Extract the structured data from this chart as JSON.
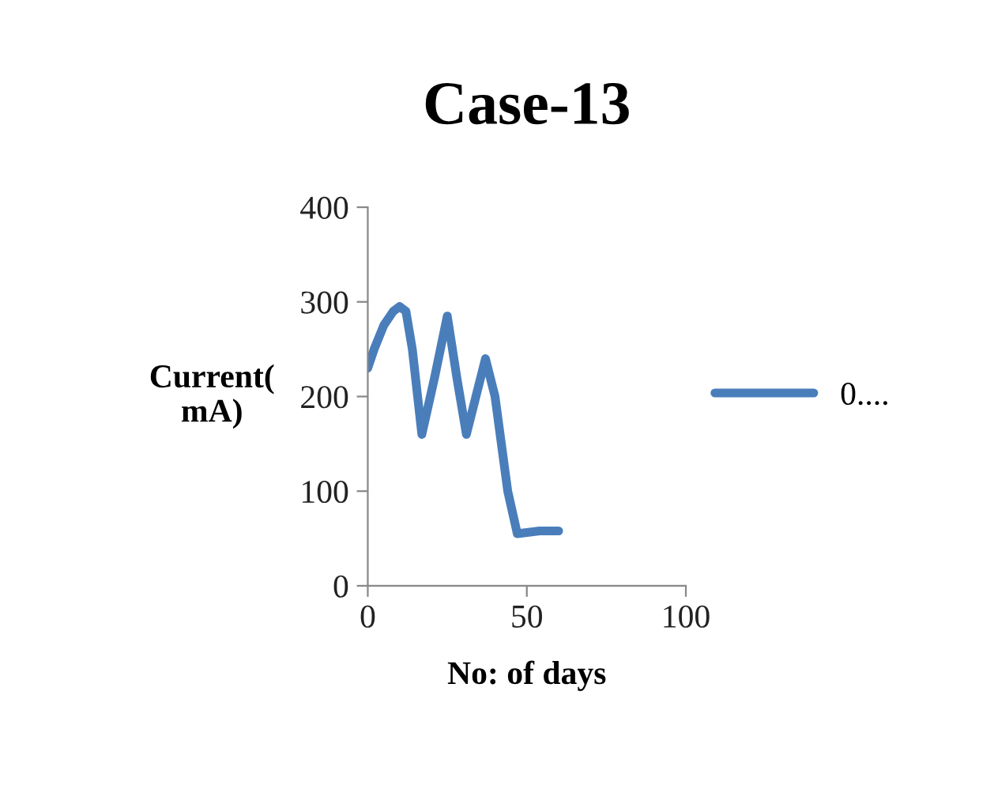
{
  "chart_data": {
    "type": "line",
    "title": "Case-13",
    "xlabel": "No: of days",
    "ylabel": "Current(\nmA)",
    "series": [
      {
        "name": "0....",
        "color": "#4a7ebb",
        "x": [
          0,
          2,
          5,
          8,
          10,
          12,
          14,
          17,
          21,
          25,
          28,
          31,
          34,
          37,
          40,
          44,
          47,
          54,
          60
        ],
        "values": [
          230,
          250,
          275,
          290,
          295,
          290,
          250,
          160,
          220,
          285,
          220,
          160,
          200,
          240,
          200,
          100,
          55,
          58,
          58
        ]
      }
    ],
    "xlim": [
      0,
      100
    ],
    "xticks": [
      0,
      50,
      100
    ],
    "ylim": [
      0,
      400
    ],
    "yticks": [
      0,
      100,
      200,
      300,
      400
    ],
    "grid": false,
    "legend": "right",
    "marker": "none",
    "line_style": "solid"
  }
}
